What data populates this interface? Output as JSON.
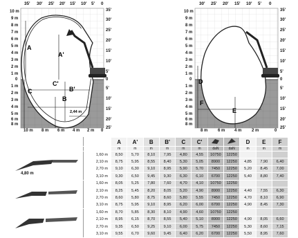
{
  "left_diagram": {
    "top_feet": [
      "35'",
      "30'",
      "25'",
      "20'",
      "15'",
      "10'",
      "5'",
      "0",
      "0",
      "35'"
    ],
    "left_meters": [
      "10 m",
      "9 m",
      "8 m",
      "7 m",
      "6 m",
      "5 m",
      "4 m",
      "3 m",
      "2 m",
      "1 m",
      "0",
      "1 m",
      "2 m",
      "3 m",
      "4 m",
      "5 m",
      "6 m",
      "7 m",
      "8 m"
    ],
    "right_feet": [
      "35'",
      "30'",
      "25'",
      "20'",
      "15'",
      "10'",
      "5'",
      "0",
      "5'",
      "10'",
      "15'",
      "20'",
      "25'"
    ],
    "bottom_meters": [
      "10 m",
      "8 m",
      "6 m",
      "4 m",
      "2 m",
      "0"
    ],
    "dimension_labels": {
      "A": "A",
      "A_prime": "A'",
      "B": "B",
      "B_prime": "B'",
      "C": "C",
      "C_prime": "C'"
    },
    "bucket_width": "2,44 m"
  },
  "right_diagram": {
    "top_feet": [
      "30'",
      "25'",
      "20'",
      "15'",
      "10'",
      "5'",
      "0"
    ],
    "left_meters": [
      "10 m",
      "9 m",
      "8 m",
      "7 m",
      "6 m",
      "5 m",
      "4 m",
      "3 m",
      "2 m",
      "1 m",
      "0",
      "1 m",
      "2 m",
      "3 m",
      "4 m",
      "5 m",
      "6 m",
      "7 m",
      "8 m"
    ],
    "right_feet": [
      "35'",
      "30'",
      "25'",
      "20'",
      "15'",
      "10'",
      "5'",
      "0",
      "5'",
      "10'",
      "15'",
      "20'",
      "25'"
    ],
    "bottom_meters": [
      "8 m",
      "6 m",
      "4 m",
      "2 m",
      "0"
    ],
    "dimension_labels": {
      "D": "D",
      "E": "E",
      "F": "F"
    }
  },
  "table": {
    "headers": [
      "A",
      "A'",
      "B",
      "B'",
      "C",
      "C'",
      "",
      "",
      "D",
      "E",
      "F"
    ],
    "units": [
      "m",
      "m",
      "m",
      "m",
      "m",
      "m",
      "daN",
      "daN",
      "m",
      "m",
      "m"
    ],
    "boom_label_1": "4,80 m",
    "groups": [
      {
        "rows": [
          {
            "arm": "1,60 m",
            "v": [
              "8,50",
              "5,70",
              "8,10",
              "7,95",
              "4,80",
              "4,55",
              "10750",
              "12250",
              "",
              "",
              ""
            ]
          },
          {
            "arm": "2,10 m",
            "v": [
              "8,75",
              "5,95",
              "8,55",
              "8,40",
              "5,30",
              "5,05",
              "8900",
              "12250",
              "4,85",
              "7,90",
              "6,40"
            ]
          },
          {
            "arm": "2,70 m",
            "v": [
              "9,10",
              "6,30",
              "9,10",
              "8,95",
              "5,90",
              "5,70",
              "7450",
              "12250",
              "5,20",
              "8,45",
              "7,00"
            ]
          },
          {
            "arm": "3,10 m",
            "v": [
              "9,30",
              "6,50",
              "9,45",
              "9,30",
              "6,30",
              "6,10",
              "6700",
              "12250",
              "5,40",
              "8,80",
              "7,40"
            ]
          }
        ]
      },
      {
        "rows": [
          {
            "arm": "1,60 m",
            "v": [
              "8,05",
              "5,25",
              "7,80",
              "7,60",
              "4,70",
              "4,10",
              "10750",
              "12250",
              "",
              "",
              ""
            ]
          },
          {
            "arm": "2,10 m",
            "v": [
              "8,25",
              "5,45",
              "8,20",
              "8,05",
              "5,20",
              "4,90",
              "8900",
              "12250",
              "4,40",
              "7,55",
              "6,30"
            ]
          },
          {
            "arm": "2,70 m",
            "v": [
              "8,60",
              "5,80",
              "8,75",
              "8,60",
              "5,80",
              "5,55",
              "7450",
              "12250",
              "4,70",
              "8,10",
              "6,90"
            ]
          },
          {
            "arm": "3,10 m",
            "v": [
              "8,75",
              "5,95",
              "9,10",
              "8,95",
              "6,20",
              "6,00",
              "6700",
              "12250",
              "4,90",
              "8,45",
              "7,30"
            ]
          }
        ]
      },
      {
        "rows": [
          {
            "arm": "1,60 m",
            "v": [
              "8,70",
              "5,85",
              "8,30",
              "8,10",
              "4,90",
              "4,60",
              "10750",
              "12250",
              "",
              "",
              ""
            ]
          },
          {
            "arm": "2,10 m",
            "v": [
              "8,95",
              "6,15",
              "8,70",
              "8,55",
              "5,40",
              "5,10",
              "8900",
              "12250",
              "4,90",
              "8,05",
              "6,60"
            ]
          },
          {
            "arm": "2,70 m",
            "v": [
              "9,35",
              "6,50",
              "9,25",
              "9,10",
              "6,00",
              "5,75",
              "7450",
              "12250",
              "5,30",
              "8,60",
              "7,15"
            ]
          },
          {
            "arm": "3,10 m",
            "v": [
              "9,55",
              "6,70",
              "9,60",
              "9,45",
              "6,40",
              "6,20",
              "6700",
              "12250",
              "5,50",
              "8,95",
              "7,60"
            ]
          }
        ]
      }
    ]
  }
}
